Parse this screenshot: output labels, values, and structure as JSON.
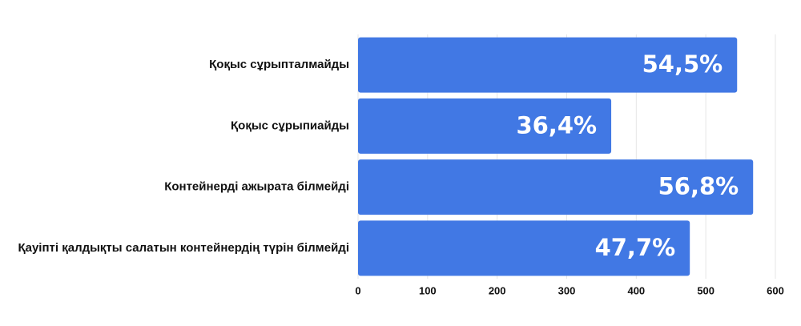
{
  "chart_data": {
    "type": "bar",
    "orientation": "horizontal",
    "categories": [
      "Қоқыс сұрыпталмайды",
      "Қоқыс сұрыпиайды",
      "Контейнерді ажырата білмейді",
      "Қауіпті қалдықты салатын контейнердің түрін білмейді"
    ],
    "values": [
      545,
      364,
      568,
      477
    ],
    "data_labels": [
      "54,5%",
      "36,4%",
      "56,8%",
      "47,7%"
    ],
    "xlim": [
      0,
      600
    ],
    "x_ticks": [
      0,
      100,
      200,
      300,
      400,
      500,
      600
    ],
    "grid": "vertical",
    "bar_color": "#4178e4"
  }
}
